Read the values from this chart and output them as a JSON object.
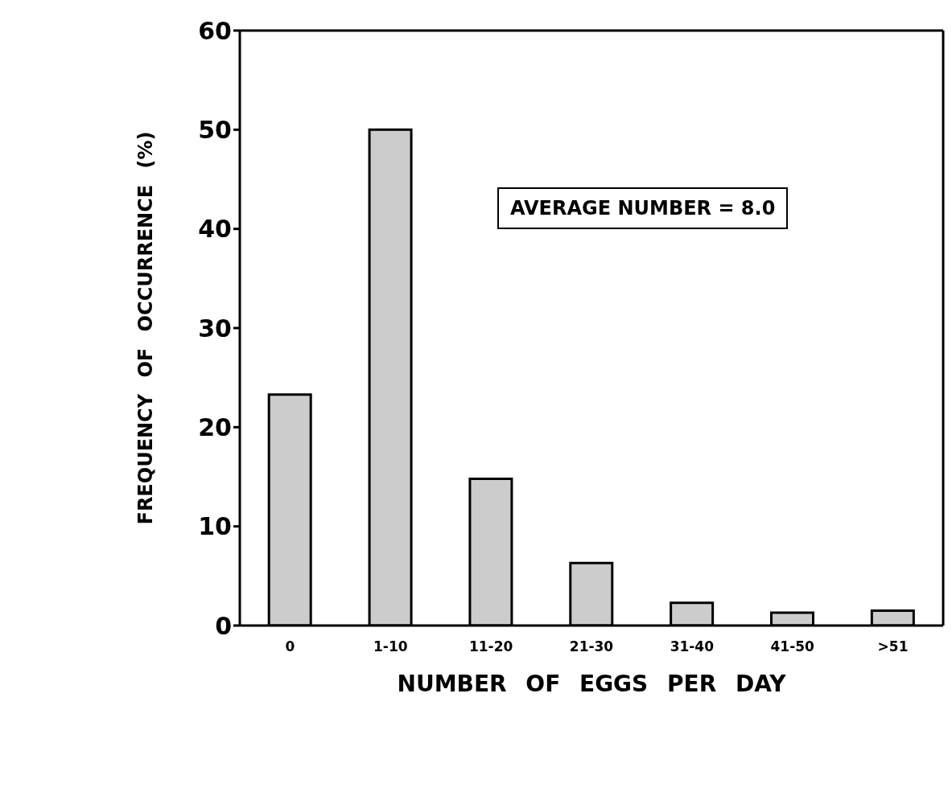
{
  "chart_data": {
    "type": "bar",
    "xlabel": "NUMBER OF EGGS PER DAY",
    "ylabel": "FREQUENCY OF OCCURRENCE (%)",
    "categories": [
      "0",
      "1-10",
      "11-20",
      "21-30",
      "31-40",
      "41-50",
      ">51"
    ],
    "values": [
      23.3,
      50,
      14.8,
      6.3,
      2.3,
      1.3,
      1.5
    ],
    "color": "#cccccc",
    "ylim": [
      0,
      60
    ],
    "yticks": [
      0,
      10,
      20,
      30,
      40,
      50,
      60
    ],
    "annotations": [
      "AVERAGE NUMBER = 8.0"
    ]
  }
}
